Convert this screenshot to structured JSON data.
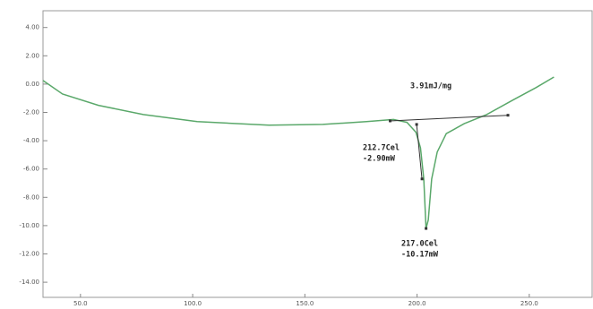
{
  "chart_data": {
    "type": "line",
    "xlim": [
      33.3,
      278
    ],
    "ylim": [
      -15,
      5
    ],
    "xticks": [
      {
        "value": 50,
        "label": "50.0"
      },
      {
        "value": 100,
        "label": "100.0"
      },
      {
        "value": 150,
        "label": "150.0"
      },
      {
        "value": 200,
        "label": "200.0"
      },
      {
        "value": 250,
        "label": "250.0"
      }
    ],
    "yticks": [
      {
        "value": 4,
        "label": "4.00"
      },
      {
        "value": 2,
        "label": "2.00"
      },
      {
        "value": 0,
        "label": "0.00"
      },
      {
        "value": -2,
        "label": "-2.00"
      },
      {
        "value": -4,
        "label": "-4.00"
      },
      {
        "value": -6,
        "label": "-6.00"
      },
      {
        "value": -8,
        "label": "-8.00"
      },
      {
        "value": -10,
        "label": "-10.00"
      },
      {
        "value": -12,
        "label": "-12.00"
      },
      {
        "value": -14,
        "label": "-14.00"
      }
    ],
    "series": [
      {
        "color": "#5aa86a",
        "x": [
          33.3,
          42,
          58,
          78,
          102,
          134,
          158,
          177.5,
          189.5,
          195.5,
          199.5,
          201.5,
          203,
          204,
          205,
          206.5,
          209,
          213,
          221,
          231,
          243,
          253,
          261
        ],
        "values": [
          0.25,
          -0.7,
          -1.5,
          -2.15,
          -2.65,
          -2.9,
          -2.85,
          -2.65,
          -2.5,
          -2.7,
          -3.4,
          -4.5,
          -6.7,
          -10.2,
          -9.6,
          -6.7,
          -4.8,
          -3.5,
          -2.8,
          -2.15,
          -1.1,
          -0.25,
          0.5
        ]
      },
      {
        "color": "#333333",
        "x": [
          188,
          240.5
        ],
        "values": [
          -2.6,
          -2.2
        ],
        "markers": true
      },
      {
        "color": "#333333",
        "x": [
          199.8,
          202.2
        ],
        "values": [
          -2.85,
          -6.7
        ],
        "markers": true
      },
      {
        "color": "#333333",
        "x": [
          204
        ],
        "values": [
          -10.2
        ],
        "markers": true
      }
    ],
    "annotations": [
      "3.91mJ/mg",
      "212.7Cel",
      "-2.90mW",
      "217.0Cel",
      "-10.17mW"
    ]
  }
}
